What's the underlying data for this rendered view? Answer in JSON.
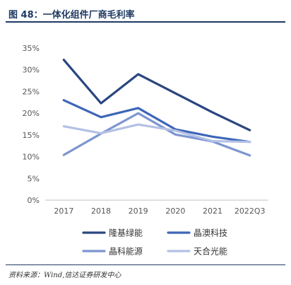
{
  "figure": {
    "title": "图 48：一体化组件厂商毛利率",
    "source": "资料来源：Wind,信达证券研发中心"
  },
  "chart_data": {
    "type": "line",
    "title": "",
    "xlabel": "",
    "ylabel": "",
    "categories": [
      "2017",
      "2018",
      "2019",
      "2020",
      "2021",
      "2022Q3"
    ],
    "y_ticks": [
      "0%",
      "5%",
      "10%",
      "15%",
      "20%",
      "25%",
      "30%",
      "35%"
    ],
    "ylim": [
      0,
      35
    ],
    "grid": false,
    "legend_position": "bottom",
    "series": [
      {
        "name": "隆基绿能",
        "color": "#2a4680",
        "values": [
          32.3,
          22.3,
          29.0,
          24.6,
          20.2,
          16.1
        ]
      },
      {
        "name": "晶澳科技",
        "color": "#3d66b8",
        "values": [
          23.0,
          19.1,
          21.2,
          16.3,
          14.6,
          13.4
        ]
      },
      {
        "name": "晶科能源",
        "color": "#7d95d0",
        "values": [
          10.4,
          15.3,
          20.0,
          15.1,
          13.5,
          10.3
        ]
      },
      {
        "name": "天合光能",
        "color": "#b3c1e4",
        "values": [
          17.0,
          15.4,
          17.4,
          16.0,
          13.6,
          13.4
        ]
      }
    ]
  }
}
